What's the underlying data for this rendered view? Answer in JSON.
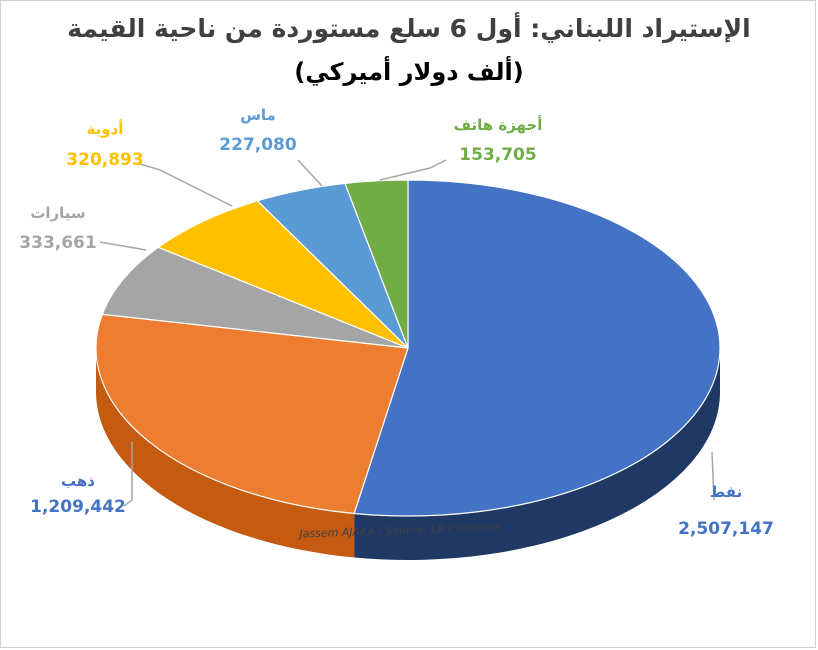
{
  "chart_data": {
    "type": "pie",
    "title": "الإستيراد اللبناني: أول 6 سلع مستوردة من ناحية القيمة",
    "subtitle": "(ألف دولار أميركي)",
    "source": "Jassem AJAKA | Source: LB Custroms",
    "unit": "thousand USD",
    "slices": [
      {
        "label": "نفط",
        "value": 2507147,
        "value_text": "2,507,147",
        "color": "#4472C4",
        "side": "#203864",
        "label_color": "#4472C4"
      },
      {
        "label": "ذهب",
        "value": 1209442,
        "value_text": "1,209,442",
        "color": "#ED7D31",
        "side": "#C55A11",
        "label_color": "#4472C4"
      },
      {
        "label": "سيارات",
        "value": 333661,
        "value_text": "333,661",
        "color": "#A5A5A5",
        "side": "#7F7F7F",
        "label_color": "#A5A5A5"
      },
      {
        "label": "أدوية",
        "value": 320893,
        "value_text": "320,893",
        "color": "#FFC000",
        "side": "#BF9000",
        "label_color": "#FFC000"
      },
      {
        "label": "ماس",
        "value": 227080,
        "value_text": "227,080",
        "color": "#5B9BD5",
        "side": "#2E75B6",
        "label_color": "#5B9BD5"
      },
      {
        "label": "أجهزة هاتف",
        "value": 153705,
        "value_text": "153,705",
        "color": "#70AD47",
        "side": "#548235",
        "label_color": "#70AD47"
      }
    ]
  }
}
